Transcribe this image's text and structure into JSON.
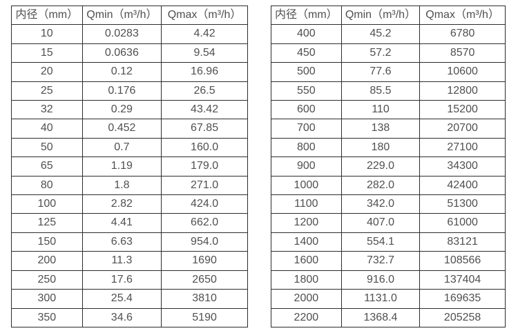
{
  "page": {
    "background_color": "#ffffff",
    "text_color": "#4f4f4f",
    "border_color": "#2b2b2b"
  },
  "tables": [
    {
      "name": "flow-rate-table-small-diameters",
      "headers": [
        "内径（mm）",
        "Qmin（m³/h）",
        "Qmax（m³/h）"
      ],
      "rows": [
        [
          "10",
          "0.0283",
          "4.42"
        ],
        [
          "15",
          "0.0636",
          "9.54"
        ],
        [
          "20",
          "0.12",
          "16.96"
        ],
        [
          "25",
          "0.176",
          "26.5"
        ],
        [
          "32",
          "0.29",
          "43.42"
        ],
        [
          "40",
          "0.452",
          "67.85"
        ],
        [
          "50",
          "0.7",
          "160.0"
        ],
        [
          "65",
          "1.19",
          "179.0"
        ],
        [
          "80",
          "1.8",
          "271.0"
        ],
        [
          "100",
          "2.82",
          "424.0"
        ],
        [
          "125",
          "4.41",
          "662.0"
        ],
        [
          "150",
          "6.63",
          "954.0"
        ],
        [
          "200",
          "11.3",
          "1690"
        ],
        [
          "250",
          "17.6",
          "2650"
        ],
        [
          "300",
          "25.4",
          "3810"
        ],
        [
          "350",
          "34.6",
          "5190"
        ]
      ]
    },
    {
      "name": "flow-rate-table-large-diameters",
      "headers": [
        "内径（mm）",
        "Qmin（m³/h）",
        "Qmax（m³/h）"
      ],
      "rows": [
        [
          "400",
          "45.2",
          "6780"
        ],
        [
          "450",
          "57.2",
          "8570"
        ],
        [
          "500",
          "77.6",
          "10600"
        ],
        [
          "550",
          "85.5",
          "12800"
        ],
        [
          "600",
          "110",
          "15200"
        ],
        [
          "700",
          "138",
          "20700"
        ],
        [
          "800",
          "180",
          "27100"
        ],
        [
          "900",
          "229.0",
          "34300"
        ],
        [
          "1000",
          "282.0",
          "42400"
        ],
        [
          "1100",
          "342.0",
          "51300"
        ],
        [
          "1200",
          "407.0",
          "61000"
        ],
        [
          "1400",
          "554.1",
          "83121"
        ],
        [
          "1600",
          "732.7",
          "108566"
        ],
        [
          "1800",
          "916.0",
          "137404"
        ],
        [
          "2000",
          "1131.0",
          "169635"
        ],
        [
          "2200",
          "1368.4",
          "205258"
        ]
      ]
    }
  ]
}
